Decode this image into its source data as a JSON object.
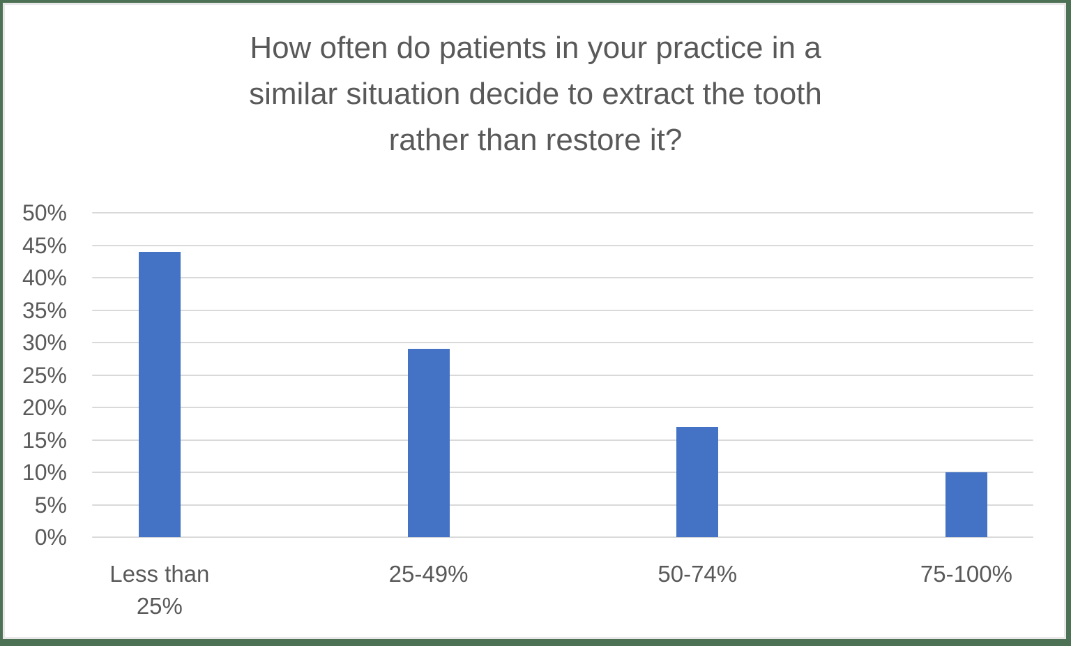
{
  "chart_data": {
    "type": "bar",
    "title": "How often do patients in your practice in a similar situation decide to extract the tooth rather than restore it?",
    "title_lines": [
      "How often do patients in your practice in a",
      "similar situation decide to extract the tooth",
      "rather than restore it?"
    ],
    "categories": [
      "Less than 25%",
      "25-49%",
      "50-74%",
      "75-100%"
    ],
    "values": [
      44,
      29,
      17,
      10
    ],
    "value_unit": "%",
    "xlabel": "",
    "ylabel": "",
    "ylim": [
      0,
      50
    ],
    "ytick_step": 5,
    "ytick_labels": [
      "0%",
      "5%",
      "10%",
      "15%",
      "20%",
      "25%",
      "30%",
      "35%",
      "40%",
      "45%",
      "50%"
    ],
    "grid": true,
    "legend": false
  },
  "colors": {
    "bar": "#4472c4",
    "gridline": "#d9d9d9",
    "axis_text": "#595959",
    "title_text": "#595959",
    "frame_border": "#4d7154",
    "frame_inner_border": "#e8e8e8",
    "background": "#ffffff"
  }
}
